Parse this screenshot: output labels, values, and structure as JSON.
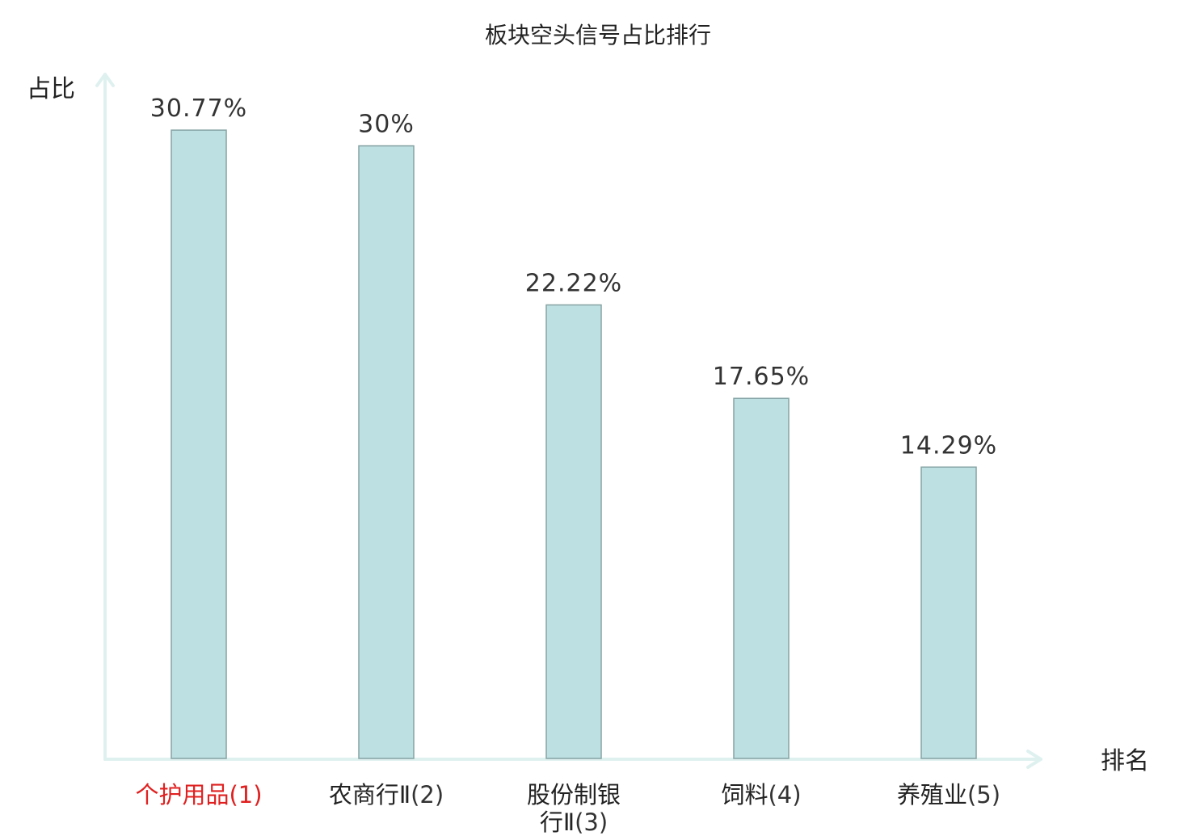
{
  "chart_data": {
    "type": "bar",
    "title": "板块空头信号占比排行",
    "xlabel": "排名",
    "ylabel": "占比",
    "categories": [
      {
        "name": "个护用品",
        "rank": "(1)",
        "highlight": true
      },
      {
        "name": "农商行Ⅱ",
        "rank": "(2)",
        "highlight": false
      },
      {
        "name": "股份制银行Ⅱ",
        "rank": "(3)",
        "highlight": false
      },
      {
        "name": "饲料",
        "rank": "(4)",
        "highlight": false
      },
      {
        "name": "养殖业",
        "rank": "(5)",
        "highlight": false
      }
    ],
    "values": [
      30.77,
      30,
      22.22,
      17.65,
      14.29
    ],
    "value_labels": [
      "30.77%",
      "30%",
      "22.22%",
      "17.65%",
      "14.29%"
    ],
    "ylim": [
      0,
      33.5
    ],
    "grid": false,
    "colors": {
      "bar_fill": "#bde0e2",
      "bar_stroke": "#86a3a4",
      "axis": "#dff1ef",
      "highlight_text": "#e02020",
      "normal_text": "#222222",
      "secondary_text": "#333333"
    }
  }
}
